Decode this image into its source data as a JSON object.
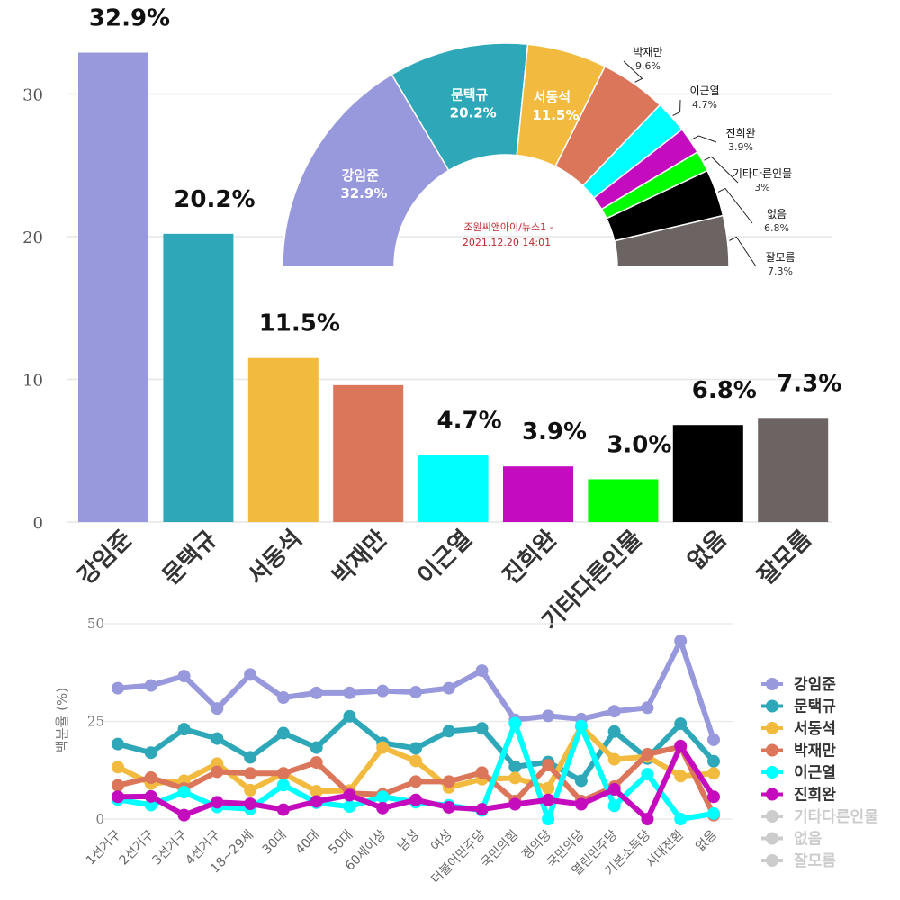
{
  "chart_data": [
    {
      "type": "bar",
      "categories": [
        "강임준",
        "문택규",
        "서동석",
        "박재만",
        "이근열",
        "진희완",
        "기타다른인물",
        "없음",
        "잘모름"
      ],
      "values": [
        32.9,
        20.2,
        11.5,
        9.6,
        4.7,
        3.9,
        3.0,
        6.8,
        7.3
      ],
      "value_labels": [
        "32.9%",
        "20.2%",
        "11.5%",
        "",
        "4.7%",
        "3.9%",
        "3.0%",
        "6.8%",
        "7.3%"
      ],
      "colors": [
        "#9898dc",
        "#2ea8b8",
        "#f2bb3f",
        "#db765a",
        "#00ffff",
        "#c40cbe",
        "#00ff00",
        "#000000",
        "#6b6462"
      ],
      "yticks": [
        0,
        10,
        20,
        30
      ],
      "ylim": [
        0,
        35
      ]
    },
    {
      "type": "pie",
      "style": "semi-donut",
      "labels": [
        "강임준",
        "문택규",
        "서동석",
        "박재만",
        "이근열",
        "진희완",
        "기타다른인물",
        "없음",
        "잘모름"
      ],
      "values": [
        32.9,
        20.2,
        11.5,
        9.6,
        4.7,
        3.9,
        3.0,
        6.8,
        7.3
      ],
      "value_labels": [
        "32.9%",
        "20.2%",
        "11.5%",
        "9.6%",
        "4.7%",
        "3.9%",
        "3%",
        "6.8%",
        "7.3%"
      ],
      "source": "조원씨앤아이/뉴스1 -",
      "date": "2021.12.20 14:01"
    },
    {
      "type": "line",
      "ylabel": "백분율 (%)",
      "yticks": [
        0,
        25,
        50
      ],
      "ylim": [
        0,
        50
      ],
      "categories": [
        "1선거구",
        "2선거구",
        "3선거구",
        "4선거구",
        "18~29세",
        "30대",
        "40대",
        "50대",
        "60세이상",
        "남성",
        "여성",
        "더불어민주당",
        "국민의힘",
        "정의당",
        "국민의당",
        "열린민주당",
        "기본소득당",
        "시대전환",
        "없음"
      ],
      "series": [
        {
          "name": "강임준",
          "color": "#9898dc",
          "visible": true,
          "values": [
            33.5,
            34.2,
            36.6,
            28.3,
            37.0,
            31.1,
            32.3,
            32.3,
            32.8,
            32.5,
            33.5,
            38.0,
            25.4,
            26.4,
            25.6,
            27.6,
            28.5,
            45.6,
            20.3
          ]
        },
        {
          "name": "문택규",
          "color": "#2ea8b8",
          "visible": true,
          "values": [
            19.2,
            17.0,
            23.0,
            20.6,
            15.8,
            22.0,
            18.3,
            26.3,
            19.5,
            18.1,
            22.5,
            23.2,
            13.4,
            14.6,
            9.8,
            22.4,
            15.5,
            24.4,
            14.8
          ]
        },
        {
          "name": "서동석",
          "color": "#f2bb3f",
          "visible": true,
          "values": [
            13.3,
            9.1,
            9.8,
            14.2,
            7.4,
            11.7,
            7.1,
            7.3,
            18.3,
            14.9,
            8.1,
            10.2,
            10.5,
            7.9,
            23.7,
            15.3,
            16.0,
            11.0,
            11.7
          ]
        },
        {
          "name": "박재만",
          "color": "#db765a",
          "visible": true,
          "values": [
            8.6,
            10.6,
            7.8,
            12.1,
            11.7,
            11.7,
            14.5,
            6.6,
            6.3,
            9.6,
            9.6,
            11.9,
            4.6,
            13.8,
            4.6,
            8.3,
            16.6,
            18.5,
            1.0
          ]
        },
        {
          "name": "이근열",
          "color": "#00ffff",
          "visible": true,
          "values": [
            5.0,
            3.6,
            6.9,
            3.1,
            2.6,
            8.7,
            4.2,
            3.2,
            5.7,
            4.3,
            3.5,
            2.2,
            24.5,
            0.0,
            23.8,
            3.4,
            11.5,
            0.0,
            1.4
          ]
        },
        {
          "name": "진희완",
          "color": "#c40cbe",
          "visible": true,
          "values": [
            5.7,
            5.8,
            1.0,
            4.3,
            3.9,
            2.4,
            4.5,
            6.1,
            2.8,
            4.9,
            3.0,
            2.5,
            3.8,
            4.9,
            3.8,
            7.6,
            0.0,
            18.7,
            5.7
          ]
        },
        {
          "name": "기타다른인물",
          "color": "#cccccc",
          "visible": false
        },
        {
          "name": "없음",
          "color": "#cccccc",
          "visible": false
        },
        {
          "name": "잘모름",
          "color": "#cccccc",
          "visible": false
        }
      ]
    }
  ]
}
